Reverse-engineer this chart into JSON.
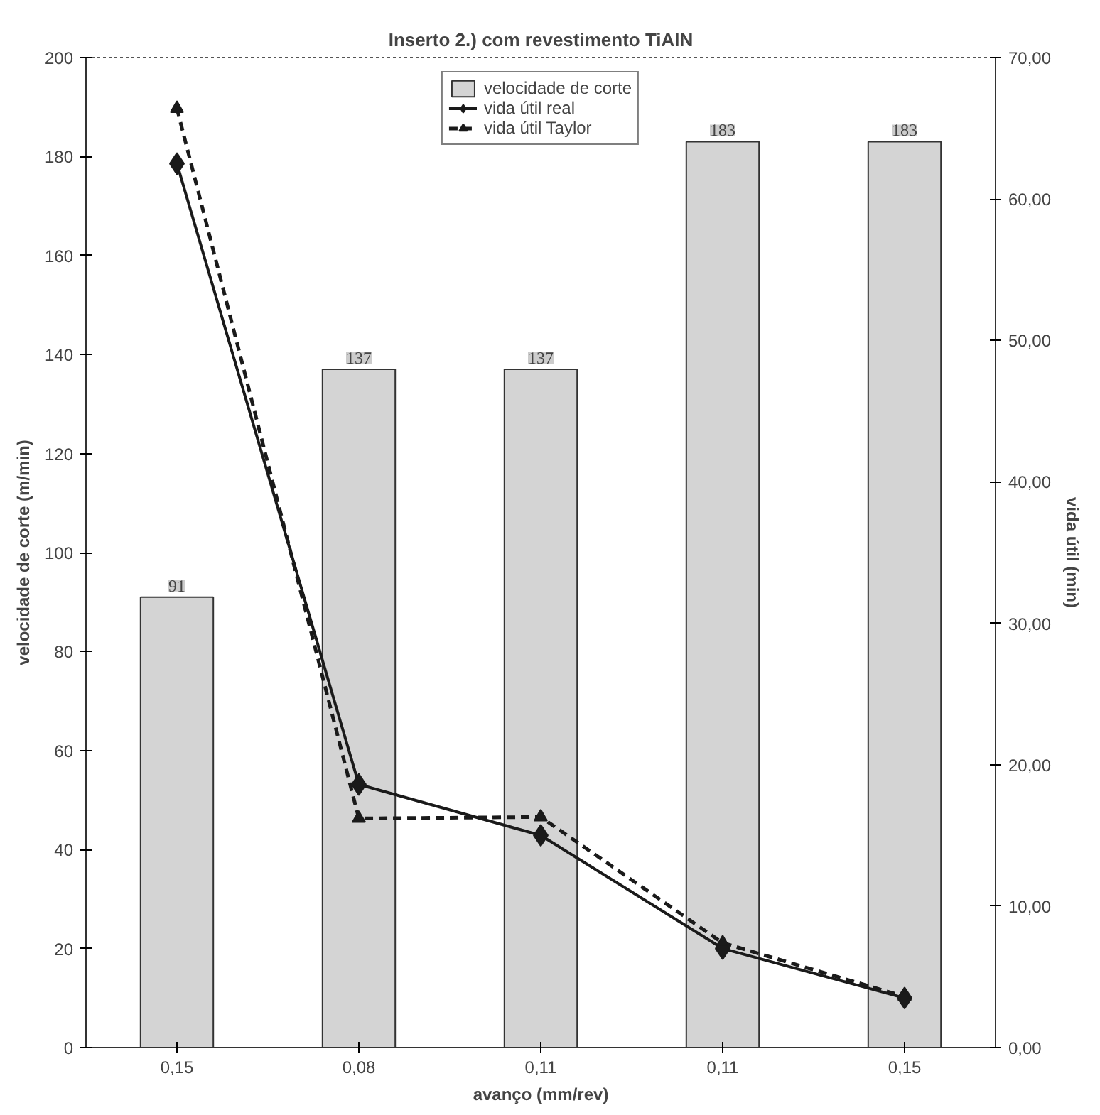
{
  "chart_data": {
    "type": "bar",
    "title": "Inserto 2.) com revestimento TiAlN",
    "xlabel": "avanço (mm/rev)",
    "ylabel": "velocidade de corte (m/min)",
    "y2label": "vida útil (min)",
    "categories": [
      "0,15",
      "0,08",
      "0,11",
      "0,11",
      "0,15"
    ],
    "series": [
      {
        "name": "velocidade de corte",
        "color": "#d4d4d4",
        "values": [
          91,
          137,
          137,
          183,
          183
        ],
        "value_labels": [
          "91",
          "137",
          "137",
          "183",
          "183"
        ]
      },
      {
        "name": "vida útil real",
        "type": "line",
        "axis": "y2",
        "color": "#1a1a1a",
        "marker": "diamond",
        "line_style": "solid",
        "values": [
          62.5,
          18.6,
          15.0,
          7.0,
          3.5
        ]
      },
      {
        "name": "vida útil Taylor",
        "type": "line",
        "axis": "y2",
        "color": "#1a1a1a",
        "marker": "triangle",
        "line_style": "dashed",
        "values": [
          66.4,
          16.2,
          16.3,
          7.4,
          3.6
        ]
      }
    ],
    "ylim": [
      0,
      200
    ],
    "yticks": [
      0,
      20,
      40,
      60,
      80,
      100,
      120,
      140,
      160,
      180,
      200
    ],
    "y2lim": [
      0,
      70
    ],
    "y2ticks": [
      {
        "value": 0,
        "label": "0,00"
      },
      {
        "value": 10,
        "label": "10,00"
      },
      {
        "value": 20,
        "label": "20,00"
      },
      {
        "value": 30,
        "label": "30,00"
      },
      {
        "value": 40,
        "label": "40,00"
      },
      {
        "value": 50,
        "label": "50,00"
      },
      {
        "value": 60,
        "label": "60,00"
      },
      {
        "value": 70,
        "label": "70,00"
      }
    ],
    "grid": false,
    "legend": "top"
  }
}
